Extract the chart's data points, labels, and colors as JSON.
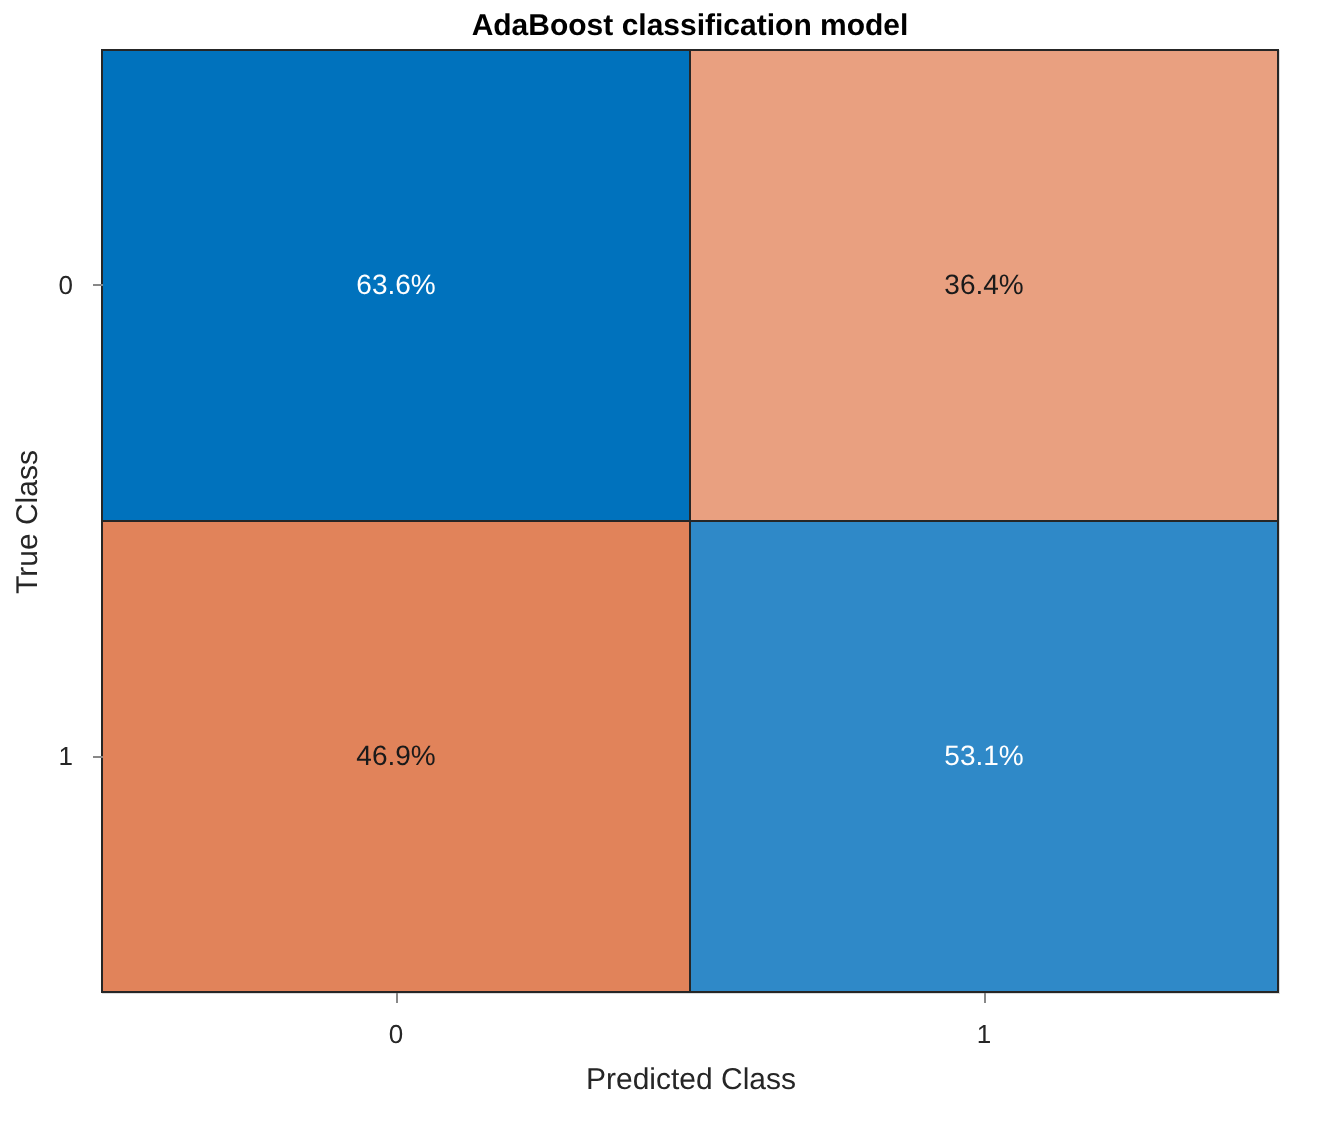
{
  "chart_data": {
    "type": "heatmap",
    "title": "AdaBoost classification model",
    "xlabel": "Predicted Class",
    "ylabel": "True Class",
    "categories": [
      "0",
      "1"
    ],
    "y_categories": [
      "0",
      "1"
    ],
    "cells": [
      [
        63.6,
        36.4
      ],
      [
        46.9,
        53.1
      ]
    ],
    "cell_labels": [
      [
        "63.6%",
        "36.4%"
      ],
      [
        "46.9%",
        "53.1%"
      ]
    ],
    "colors": [
      [
        "#0072bd",
        "#e89a78"
      ],
      [
        "#e07e53",
        "#2a86c7"
      ]
    ],
    "grid": false
  }
}
